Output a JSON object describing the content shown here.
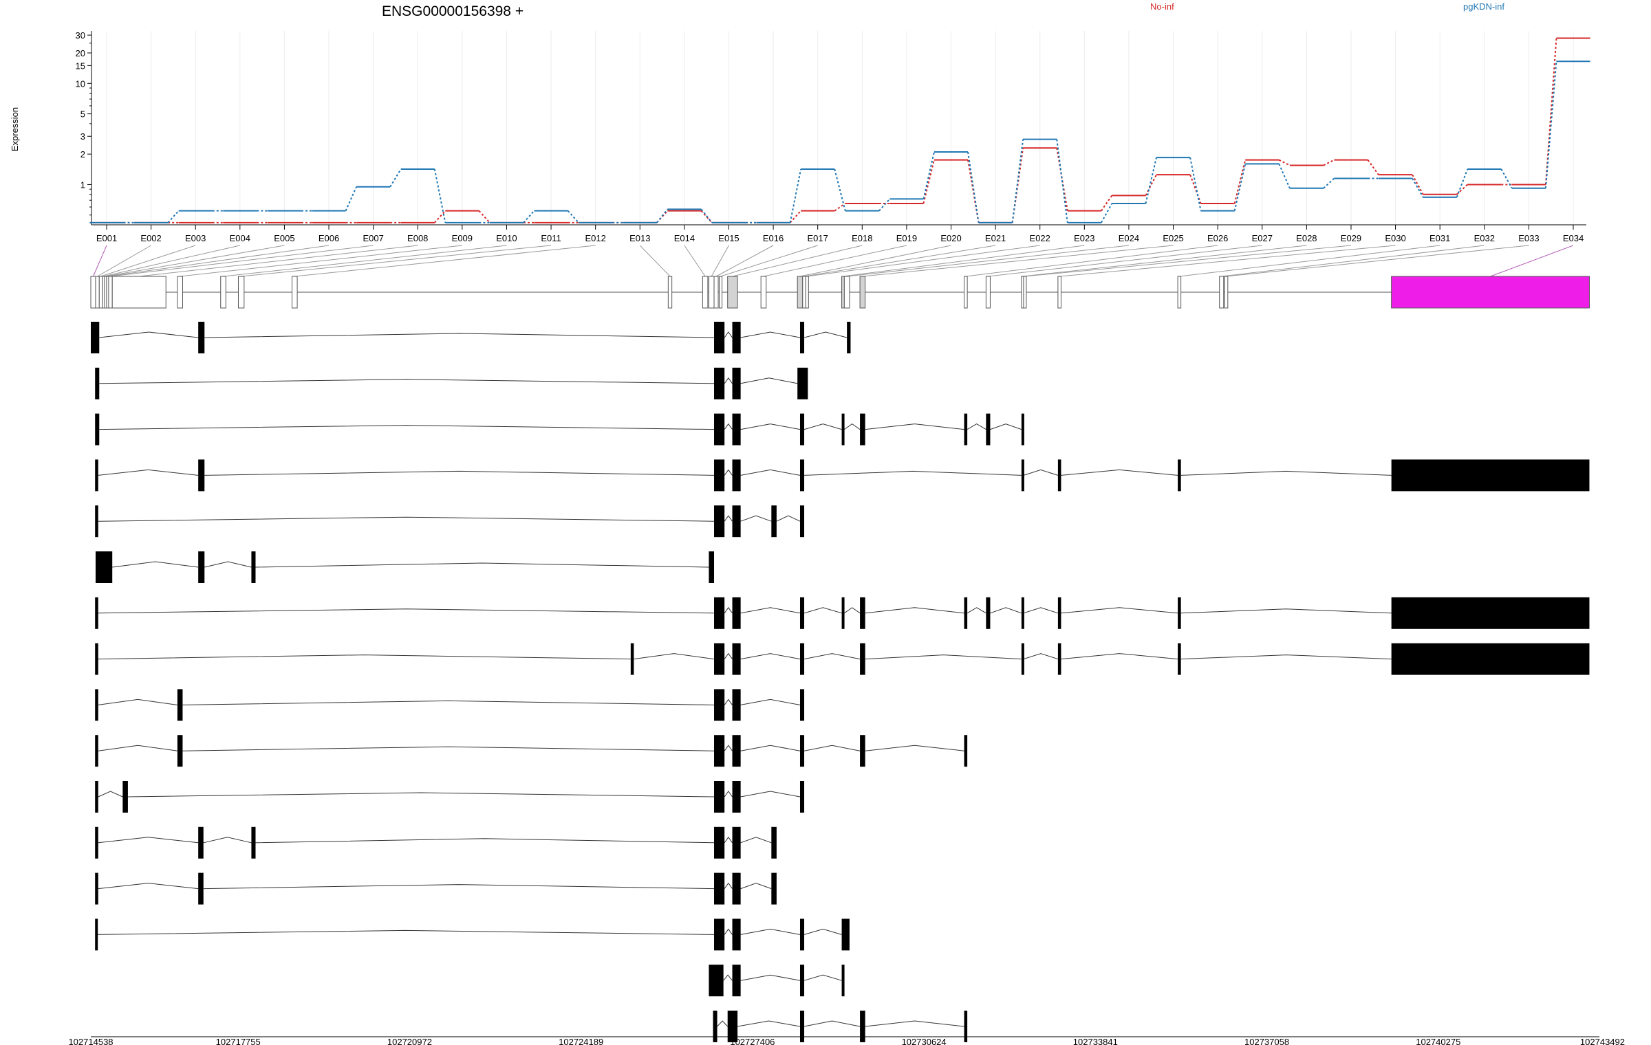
{
  "header": {
    "gene_title": "ENSG00000156398 +",
    "legend": [
      {
        "label": "No-inf",
        "color": "#d62728"
      },
      {
        "label": "pgKDN-inf",
        "color": "#1f77b4"
      }
    ],
    "y_axis_label": "Expression"
  },
  "chart_data": {
    "type": "line",
    "title": "ENSG00000156398 +",
    "ylabel": "Expression",
    "yscale": "log",
    "ylim": [
      0.4,
      33
    ],
    "yticks": [
      1,
      2,
      3,
      5,
      10,
      15,
      20,
      30
    ],
    "categories": [
      "E001",
      "E002",
      "E003",
      "E004",
      "E005",
      "E006",
      "E007",
      "E008",
      "E009",
      "E010",
      "E011",
      "E012",
      "E013",
      "E014",
      "E015",
      "E016",
      "E017",
      "E018",
      "E019",
      "E020",
      "E021",
      "E022",
      "E023",
      "E024",
      "E025",
      "E026",
      "E027",
      "E028",
      "E029",
      "E030",
      "E031",
      "E032",
      "E033",
      "E034"
    ],
    "series": [
      {
        "name": "No-inf",
        "color": "#d62728",
        "values": [
          0.42,
          0.42,
          0.42,
          0.42,
          0.42,
          0.42,
          0.42,
          0.42,
          0.55,
          0.42,
          0.42,
          0.42,
          0.42,
          0.55,
          0.42,
          0.42,
          0.55,
          0.65,
          0.65,
          1.75,
          0.42,
          2.3,
          0.55,
          0.78,
          1.25,
          0.65,
          1.75,
          1.55,
          1.75,
          1.25,
          0.8,
          1.0,
          1.0,
          28
        ]
      },
      {
        "name": "pgKDN-inf",
        "color": "#1f77b4",
        "values": [
          0.42,
          0.42,
          0.55,
          0.55,
          0.55,
          0.55,
          0.95,
          1.42,
          0.42,
          0.42,
          0.55,
          0.42,
          0.42,
          0.57,
          0.42,
          0.42,
          1.42,
          0.55,
          0.72,
          2.1,
          0.42,
          2.8,
          0.42,
          0.65,
          1.85,
          0.55,
          1.6,
          0.92,
          1.15,
          1.15,
          0.75,
          1.42,
          0.92,
          16.5
        ]
      }
    ],
    "exon_labels": [
      "E001",
      "E002",
      "E003",
      "E004",
      "E005",
      "E006",
      "E007",
      "E008",
      "E009",
      "E010",
      "E011",
      "E012",
      "E013",
      "E014",
      "E015",
      "E016",
      "E017",
      "E018",
      "E019",
      "E020",
      "E021",
      "E022",
      "E023",
      "E024",
      "E025",
      "E026",
      "E027",
      "E028",
      "E029",
      "E030",
      "E031",
      "E032",
      "E033",
      "E034"
    ],
    "gene_model": {
      "exons": [
        {
          "label": "E001",
          "start": 102714538,
          "end": 102714630,
          "color": "white"
        },
        {
          "label": "E002",
          "start": 102714630,
          "end": 102714700,
          "color": "white"
        },
        {
          "label": "E003",
          "start": 102714700,
          "end": 102714760,
          "color": "white"
        },
        {
          "label": "E004",
          "start": 102714760,
          "end": 102714800,
          "color": "white"
        },
        {
          "label": "E005",
          "start": 102714800,
          "end": 102714840,
          "color": "white"
        },
        {
          "label": "E006",
          "start": 102714840,
          "end": 102714880,
          "color": "white"
        },
        {
          "label": "E007",
          "start": 102714880,
          "end": 102714950,
          "color": "white"
        },
        {
          "label": "E008",
          "start": 102714950,
          "end": 102715980,
          "color": "white"
        },
        {
          "label": "E009",
          "start": 102716200,
          "end": 102716300,
          "color": "white"
        },
        {
          "label": "E010",
          "start": 102717030,
          "end": 102717130,
          "color": "white"
        },
        {
          "label": "E011",
          "start": 102717370,
          "end": 102717480,
          "color": "white"
        },
        {
          "label": "E012",
          "start": 102718400,
          "end": 102718500,
          "color": "white"
        },
        {
          "label": "E013",
          "start": 102725620,
          "end": 102725690,
          "color": "white"
        },
        {
          "label": "E014",
          "start": 102726280,
          "end": 102726380,
          "color": "white"
        },
        {
          "label": "E015",
          "start": 102726400,
          "end": 102726500,
          "color": "white"
        },
        {
          "label": "E016",
          "start": 102726500,
          "end": 102726580,
          "color": "white"
        },
        {
          "label": "E017",
          "start": 102726600,
          "end": 102726650,
          "color": "white"
        },
        {
          "label": "E018",
          "start": 102726760,
          "end": 102726950,
          "color": "lightgray"
        },
        {
          "label": "E019",
          "start": 102727400,
          "end": 102727500,
          "color": "white"
        },
        {
          "label": "E020",
          "start": 102728100,
          "end": 102728200,
          "color": "lightgray"
        },
        {
          "label": "E021",
          "start": 102728200,
          "end": 102728260,
          "color": "white"
        },
        {
          "label": "E022",
          "start": 102728260,
          "end": 102728300,
          "color": "white"
        },
        {
          "label": "E023",
          "start": 102728950,
          "end": 102729000,
          "color": "lightgray"
        },
        {
          "label": "E024",
          "start": 102729000,
          "end": 102729100,
          "color": "white"
        },
        {
          "label": "E025",
          "start": 102729300,
          "end": 102729400,
          "color": "lightgray"
        },
        {
          "label": "E026",
          "start": 102731300,
          "end": 102731360,
          "color": "white"
        },
        {
          "label": "E027",
          "start": 102731720,
          "end": 102731800,
          "color": "white"
        },
        {
          "label": "E028",
          "start": 102732400,
          "end": 102732440,
          "color": "white"
        },
        {
          "label": "E029",
          "start": 102732440,
          "end": 102732480,
          "color": "white"
        },
        {
          "label": "E030",
          "start": 102733100,
          "end": 102733160,
          "color": "white"
        },
        {
          "label": "E031",
          "start": 102735400,
          "end": 102735460,
          "color": "white"
        },
        {
          "label": "E032",
          "start": 102736200,
          "end": 102736280,
          "color": "white"
        },
        {
          "label": "E033",
          "start": 102736300,
          "end": 102736360,
          "color": "white"
        },
        {
          "label": "E034",
          "start": 102739500,
          "end": 102743300,
          "color": "#ee1ee8"
        }
      ]
    },
    "transcripts": [
      [
        [
          102714538,
          102714700
        ],
        [
          102716600,
          102716720
        ],
        [
          102726500,
          102726700
        ],
        [
          102726850,
          102727010
        ],
        [
          102728150,
          102728230
        ],
        [
          102729050,
          102729120
        ]
      ],
      [
        [
          102714620,
          102714700
        ],
        [
          102726500,
          102726700
        ],
        [
          102726850,
          102727010
        ],
        [
          102728100,
          102728300
        ]
      ],
      [
        [
          102714620,
          102714700
        ],
        [
          102726500,
          102726700
        ],
        [
          102726850,
          102727010
        ],
        [
          102728150,
          102728230
        ],
        [
          102728950,
          102729000
        ],
        [
          102729300,
          102729400
        ],
        [
          102731300,
          102731360
        ],
        [
          102731720,
          102731800
        ],
        [
          102732400,
          102732440
        ]
      ],
      [
        [
          102714620,
          102714680
        ],
        [
          102716600,
          102716720
        ],
        [
          102726500,
          102726700
        ],
        [
          102726850,
          102727010
        ],
        [
          102728150,
          102728230
        ],
        [
          102732400,
          102732440
        ],
        [
          102733100,
          102733160
        ],
        [
          102735400,
          102735460
        ],
        [
          102739500,
          102743300
        ]
      ],
      [
        [
          102714620,
          102714680
        ],
        [
          102726500,
          102726700
        ],
        [
          102726850,
          102727010
        ],
        [
          102727600,
          102727700
        ],
        [
          102728150,
          102728230
        ]
      ],
      [
        [
          102714630,
          102714950
        ],
        [
          102716600,
          102716720
        ],
        [
          102717620,
          102717700
        ],
        [
          102726400,
          102726500
        ]
      ],
      [
        [
          102714620,
          102714680
        ],
        [
          102726500,
          102726700
        ],
        [
          102726850,
          102727010
        ],
        [
          102728150,
          102728230
        ],
        [
          102728950,
          102729000
        ],
        [
          102729300,
          102729400
        ],
        [
          102731300,
          102731360
        ],
        [
          102731720,
          102731800
        ],
        [
          102732400,
          102732440
        ],
        [
          102733100,
          102733160
        ],
        [
          102735400,
          102735460
        ],
        [
          102739500,
          102743300
        ]
      ],
      [
        [
          102714620,
          102714680
        ],
        [
          102724900,
          102724960
        ],
        [
          102726500,
          102726700
        ],
        [
          102726850,
          102727010
        ],
        [
          102728150,
          102728230
        ],
        [
          102729300,
          102729400
        ],
        [
          102732400,
          102732440
        ],
        [
          102733100,
          102733160
        ],
        [
          102735400,
          102735460
        ],
        [
          102739500,
          102743300
        ]
      ],
      [
        [
          102714620,
          102714680
        ],
        [
          102716200,
          102716300
        ],
        [
          102726500,
          102726700
        ],
        [
          102726850,
          102727010
        ],
        [
          102728150,
          102728230
        ]
      ],
      [
        [
          102714620,
          102714680
        ],
        [
          102716200,
          102716300
        ],
        [
          102726500,
          102726700
        ],
        [
          102726850,
          102727010
        ],
        [
          102728150,
          102728230
        ],
        [
          102729300,
          102729400
        ],
        [
          102731300,
          102731360
        ]
      ],
      [
        [
          102714620,
          102714680
        ],
        [
          102715150,
          102715250
        ],
        [
          102726500,
          102726700
        ],
        [
          102726850,
          102727010
        ],
        [
          102728150,
          102728230
        ]
      ],
      [
        [
          102714620,
          102714680
        ],
        [
          102716600,
          102716700
        ],
        [
          102717620,
          102717700
        ],
        [
          102726500,
          102726700
        ],
        [
          102726850,
          102727010
        ],
        [
          102727600,
          102727700
        ]
      ],
      [
        [
          102714620,
          102714680
        ],
        [
          102716600,
          102716700
        ],
        [
          102726500,
          102726700
        ],
        [
          102726850,
          102727010
        ],
        [
          102727600,
          102727700
        ]
      ],
      [
        [
          102714620,
          102714640
        ],
        [
          102726500,
          102726700
        ],
        [
          102726850,
          102727010
        ],
        [
          102728150,
          102728230
        ],
        [
          102728950,
          102729100
        ]
      ],
      [
        [
          102726400,
          102726680
        ],
        [
          102726850,
          102727010
        ],
        [
          102728150,
          102728230
        ],
        [
          102728950,
          102729000
        ]
      ],
      [
        [
          102726480,
          102726560
        ],
        [
          102726760,
          102726950
        ],
        [
          102728150,
          102728230
        ],
        [
          102729300,
          102729400
        ],
        [
          102731300,
          102731360
        ]
      ]
    ],
    "coordinate_ticks": [
      "102714538",
      "102717755",
      "102720972",
      "102724189",
      "102727406",
      "102730624",
      "102733841",
      "102737058",
      "102740275",
      "102743492"
    ],
    "coordinate_range": [
      102714538,
      102743492
    ]
  }
}
